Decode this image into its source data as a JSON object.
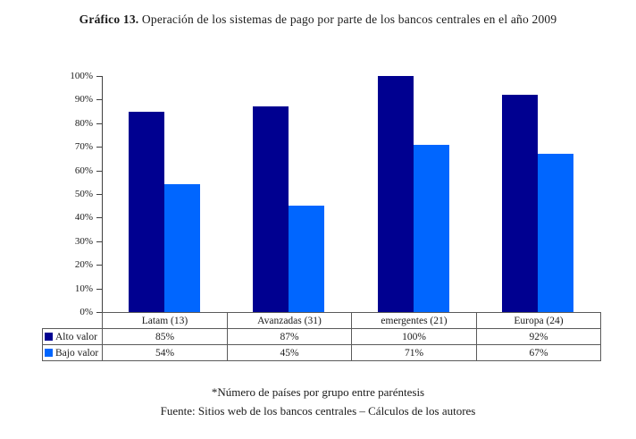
{
  "title": {
    "prefix": "Gráfico 13.",
    "text": " Operación de los sistemas de pago por parte de los bancos centrales en el año 2009"
  },
  "chart_data": {
    "type": "bar",
    "categories": [
      "Latam (13)",
      "Avanzadas (31)",
      "emergentes (21)",
      "Europa (24)"
    ],
    "series": [
      {
        "name": "Alto valor",
        "color": "#000090",
        "values": [
          85,
          87,
          100,
          92
        ],
        "labels": [
          "85%",
          "87%",
          "100%",
          "92%"
        ]
      },
      {
        "name": "Bajo valor",
        "color": "#0066FF",
        "values": [
          54,
          45,
          71,
          67
        ],
        "labels": [
          "54%",
          "45%",
          "71%",
          "67%"
        ]
      }
    ],
    "title": "Gráfico 13. Operación de los sistemas de pago por parte de los bancos centrales en el año 2009",
    "xlabel": "",
    "ylabel": "",
    "ylim": [
      0,
      100
    ],
    "y_tick_labels": [
      "0%",
      "10%",
      "20%",
      "30%",
      "40%",
      "50%",
      "60%",
      "70%",
      "80%",
      "90%",
      "100%"
    ],
    "grid": false,
    "legend_position": "table-below-with-values"
  },
  "footnote": "*Número de países por grupo entre paréntesis",
  "source": "Fuente: Sitios web de los bancos centrales – Cálculos de los autores",
  "colors": {
    "alto_valor": "#000090",
    "bajo_valor": "#0066FF",
    "axis": "#404040",
    "table_border": "#5a5a5a",
    "text": "#1a1a1a",
    "background": "#ffffff"
  }
}
